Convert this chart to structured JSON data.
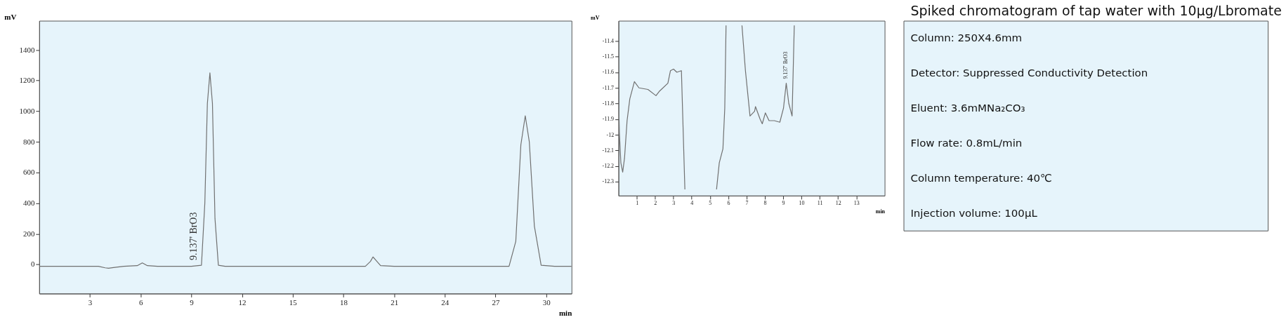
{
  "chart_data": [
    {
      "type": "line",
      "xlabel": "min",
      "ylabel": "mV",
      "x": [
        0,
        3.5,
        3.9,
        4.1,
        4.4,
        5,
        5.8,
        6.1,
        6.4,
        7,
        9,
        9.6,
        9.8,
        9.95,
        10.1,
        10.25,
        10.4,
        10.6,
        11,
        14,
        19.3,
        19.6,
        19.75,
        19.9,
        20.2,
        21,
        27.8,
        28.2,
        28.5,
        28.76,
        29.0,
        29.3,
        29.7,
        30.5,
        31.5
      ],
      "series": [
        {
          "color": "#707070",
          "values": [
            -12,
            -12,
            -22,
            -25,
            -20,
            -12,
            -8,
            10,
            -8,
            -12,
            -12,
            -5,
            400,
            1050,
            1250,
            1050,
            300,
            -5,
            -12,
            -12,
            -12,
            20,
            49,
            30,
            -8,
            -12,
            -12,
            150,
            780,
            970,
            800,
            250,
            -5,
            -12,
            -12
          ]
        }
      ],
      "xlim": [
        0,
        31.5
      ],
      "ylim": [
        -190,
        1590
      ],
      "xticks": [
        3,
        6,
        9,
        12,
        15,
        18,
        21,
        24,
        27,
        30
      ],
      "yticks": [
        0,
        200,
        400,
        600,
        800,
        1000,
        1200,
        1400
      ],
      "annotations": [
        {
          "text": "9.137' BrO3",
          "x": 9.137,
          "y": 0
        }
      ],
      "grid": false
    },
    {
      "type": "line",
      "xlabel": "min",
      "ylabel": "mV",
      "x": [
        0,
        0.05,
        0.13,
        0.23,
        0.33,
        0.47,
        0.62,
        0.87,
        1.12,
        1.61,
        2.05,
        2.25,
        2.7,
        2.84,
        3.01,
        3.19,
        3.44,
        3.63,
        4.5,
        5.36,
        5.51,
        5.71,
        5.81,
        5.88,
        6.3,
        6.75,
        6.94,
        7.19,
        7.44,
        7.49,
        7.74,
        7.86,
        8.03,
        8.23,
        8.52,
        8.82,
        9.02,
        9.17,
        9.31,
        9.49,
        9.61
      ],
      "series": [
        {
          "color": "#707070",
          "values": [
            -11.72,
            -11.99,
            -12.18,
            -12.24,
            -12.15,
            -11.91,
            -11.77,
            -11.66,
            -11.7,
            -11.71,
            -11.75,
            -11.72,
            -11.67,
            -11.59,
            -11.58,
            -11.6,
            -11.59,
            -12.35,
            null,
            -12.35,
            -12.18,
            -12.09,
            -11.83,
            -11.3,
            null,
            -11.3,
            -11.59,
            -11.88,
            -11.85,
            -11.82,
            -11.9,
            -11.93,
            -11.86,
            -11.91,
            -11.91,
            -11.92,
            -11.83,
            -11.67,
            -11.8,
            -11.88,
            -11.3
          ]
        }
      ],
      "xlim": [
        0,
        14.55
      ],
      "ylim": [
        -12.39,
        -11.27
      ],
      "xticks": [
        1,
        2,
        3,
        4,
        5,
        6,
        7,
        8,
        9,
        10,
        11,
        12,
        13
      ],
      "yticks": [
        -11.4,
        -11.5,
        -11.6,
        -11.7,
        -11.8,
        -11.9,
        -12,
        -12.1,
        -12.2,
        -12.3
      ],
      "annotations": [
        {
          "text": "9.137' BrO3",
          "x": 9.137,
          "y": -11.67
        }
      ],
      "grid": false
    },
    {
      "type": "other",
      "title": "Spiked chromatogram of tap water with 10μg/Lbromate",
      "annotations": [
        "Column: 250X4.6mm",
        "Detector: Suppressed Conductivity Detection",
        "Eluent: 3.6mMNa₂CO₃",
        "Flow rate: 0.8mL/min",
        "Column temperature: 40℃",
        "Injection volume: 100μL"
      ]
    }
  ]
}
